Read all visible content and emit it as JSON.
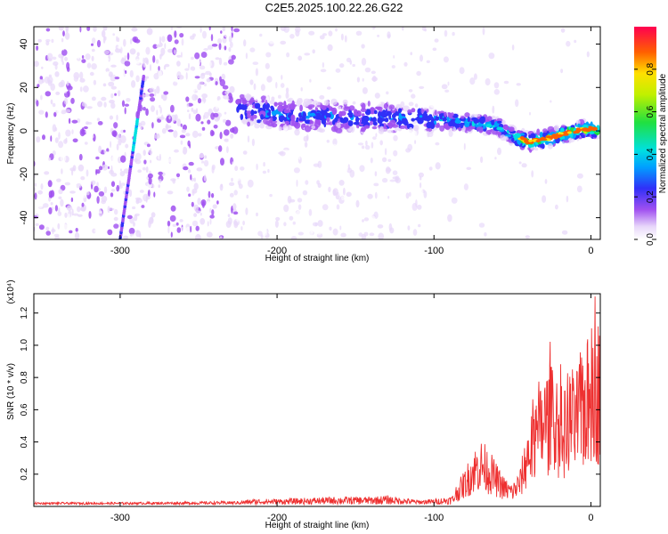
{
  "title": "C2E5.2025.100.22.26.G22",
  "chart_data": [
    {
      "type": "heatmap",
      "xlabel": "Height of straight line (km)",
      "ylabel": "Frequency (Hz)",
      "xlim": [
        -355,
        6
      ],
      "ylim": [
        -50,
        48
      ],
      "xticks": [
        -300,
        -200,
        -100,
        0
      ],
      "yticks": [
        -40,
        -20,
        0,
        20,
        40
      ],
      "colorbar": {
        "label": "Normalized spectral amplitude",
        "range": [
          0,
          1
        ],
        "ticks": [
          0.0,
          0.2,
          0.4,
          0.6,
          0.8
        ],
        "tick_labels": [
          "0.0",
          "0.2",
          "0.4",
          "0.6",
          "0.8"
        ]
      },
      "ridge": {
        "x": [
          -225,
          -200,
          -175,
          -150,
          -125,
          -100,
          -80,
          -60,
          -50,
          -40,
          -30,
          -20,
          -10,
          0,
          5
        ],
        "y": [
          10,
          8,
          7,
          6,
          6,
          5,
          4,
          2,
          -2,
          -5,
          -4,
          -2,
          0,
          1,
          0
        ]
      },
      "diagonal": {
        "x": [
          -300,
          -285
        ],
        "y": [
          -50,
          25
        ]
      }
    },
    {
      "type": "line",
      "xlabel": "Height of straight line (km)",
      "ylabel": "SNR (10 * v/v)",
      "y_multiplier": "(x10⁴)",
      "xlim": [
        -355,
        6
      ],
      "ylim": [
        0,
        1.32
      ],
      "xticks": [
        -300,
        -200,
        -100,
        0
      ],
      "yticks": [
        0.2,
        0.4,
        0.6,
        0.8,
        1.0,
        1.2
      ],
      "ytick_labels": [
        "0.2",
        "0.4",
        "0.6",
        "0.8",
        "1.0",
        "1.2"
      ],
      "series": [
        {
          "color": "#ee3030",
          "x": [
            -355,
            -300,
            -250,
            -225,
            -215,
            -200,
            -180,
            -160,
            -140,
            -130,
            -120,
            -110,
            -100,
            -90,
            -85,
            -80,
            -75,
            -70,
            -65,
            -60,
            -55,
            -50,
            -45,
            -40,
            -35,
            -30,
            -25,
            -20,
            -15,
            -10,
            -5,
            0,
            5
          ],
          "y": [
            0.02,
            0.02,
            0.025,
            0.03,
            0.05,
            0.05,
            0.06,
            0.07,
            0.07,
            0.08,
            0.06,
            0.04,
            0.05,
            0.07,
            0.12,
            0.2,
            0.3,
            0.35,
            0.3,
            0.22,
            0.15,
            0.12,
            0.2,
            0.45,
            0.55,
            0.7,
            0.75,
            0.65,
            0.6,
            0.7,
            0.85,
            0.9,
            1.0
          ]
        }
      ]
    }
  ]
}
